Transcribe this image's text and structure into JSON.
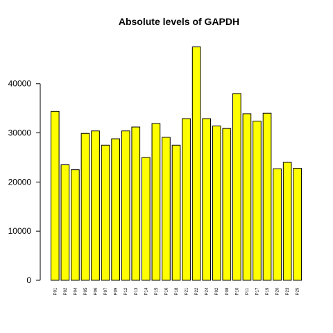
{
  "chart_data": {
    "type": "bar",
    "title": "Absolute levels of GAPDH",
    "xlabel": "",
    "ylabel": "",
    "ylim": [
      0,
      49000
    ],
    "yticks": [
      0,
      10000,
      20000,
      30000,
      40000
    ],
    "ytick_labels": [
      "0",
      "10000",
      "20000",
      "30000",
      "40000"
    ],
    "categories": [
      "P01",
      "P02",
      "P04",
      "P05",
      "P06",
      "P07",
      "P09",
      "P12",
      "P13",
      "P14",
      "P15",
      "P16",
      "P18",
      "P21",
      "P22",
      "P24",
      "P02",
      "P08",
      "P10",
      "P11",
      "P17",
      "P19",
      "P20",
      "P23",
      "P25"
    ],
    "values": [
      34400,
      23500,
      22500,
      29900,
      30400,
      27500,
      28800,
      30400,
      31200,
      25000,
      31900,
      29100,
      27500,
      32900,
      47500,
      32900,
      31400,
      30900,
      38000,
      33900,
      32400,
      34000,
      22700,
      24000,
      22800
    ],
    "bar_color": "#ffff00",
    "border_color": "#000000"
  }
}
